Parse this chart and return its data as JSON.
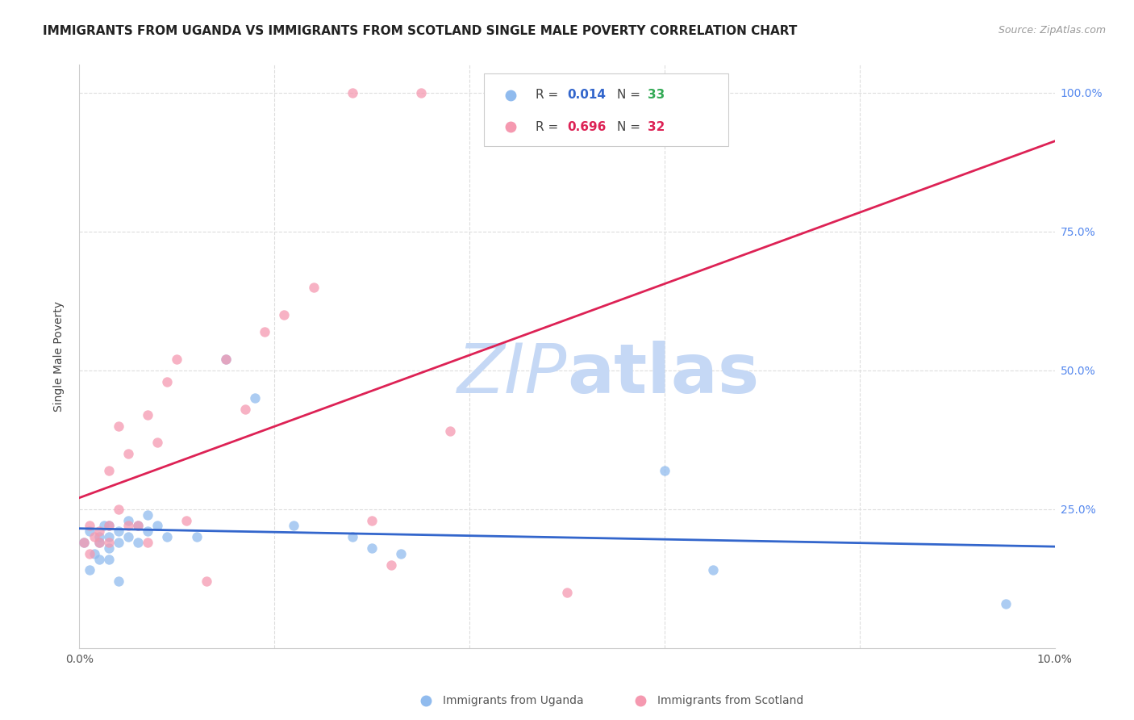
{
  "title": "IMMIGRANTS FROM UGANDA VS IMMIGRANTS FROM SCOTLAND SINGLE MALE POVERTY CORRELATION CHART",
  "source": "Source: ZipAtlas.com",
  "ylabel": "Single Male Poverty",
  "xlim": [
    0,
    0.1
  ],
  "ylim": [
    0.0,
    1.05
  ],
  "R_uganda": 0.014,
  "N_uganda": 33,
  "R_scotland": 0.696,
  "N_scotland": 32,
  "color_uganda": "#90bbee",
  "color_scotland": "#f599b0",
  "trendline_uganda_color": "#3366cc",
  "trendline_scotland_color": "#dd2255",
  "grid_color": "#dddddd",
  "watermark_zip": "ZIP",
  "watermark_atlas": "atlas",
  "watermark_color": "#c5d8f5",
  "legend_uganda": "Immigrants from Uganda",
  "legend_scotland": "Immigrants from Scotland",
  "uganda_x": [
    0.0005,
    0.001,
    0.001,
    0.0015,
    0.002,
    0.002,
    0.002,
    0.0025,
    0.003,
    0.003,
    0.003,
    0.003,
    0.004,
    0.004,
    0.004,
    0.005,
    0.005,
    0.006,
    0.006,
    0.007,
    0.007,
    0.008,
    0.009,
    0.012,
    0.015,
    0.018,
    0.022,
    0.028,
    0.03,
    0.033,
    0.06,
    0.065,
    0.095
  ],
  "uganda_y": [
    0.19,
    0.14,
    0.21,
    0.17,
    0.2,
    0.16,
    0.19,
    0.22,
    0.2,
    0.18,
    0.16,
    0.22,
    0.21,
    0.19,
    0.12,
    0.23,
    0.2,
    0.22,
    0.19,
    0.24,
    0.21,
    0.22,
    0.2,
    0.2,
    0.52,
    0.45,
    0.22,
    0.2,
    0.18,
    0.17,
    0.32,
    0.14,
    0.08
  ],
  "scotland_x": [
    0.0005,
    0.001,
    0.001,
    0.0015,
    0.002,
    0.002,
    0.003,
    0.003,
    0.003,
    0.004,
    0.004,
    0.005,
    0.005,
    0.006,
    0.007,
    0.007,
    0.008,
    0.009,
    0.01,
    0.011,
    0.013,
    0.015,
    0.017,
    0.019,
    0.021,
    0.024,
    0.028,
    0.03,
    0.032,
    0.035,
    0.038,
    0.05
  ],
  "scotland_y": [
    0.19,
    0.17,
    0.22,
    0.2,
    0.21,
    0.19,
    0.22,
    0.32,
    0.19,
    0.25,
    0.4,
    0.22,
    0.35,
    0.22,
    0.42,
    0.19,
    0.37,
    0.48,
    0.52,
    0.23,
    0.12,
    0.52,
    0.43,
    0.57,
    0.6,
    0.65,
    1.0,
    0.23,
    0.15,
    1.0,
    0.39,
    0.1
  ],
  "marker_size": 80
}
